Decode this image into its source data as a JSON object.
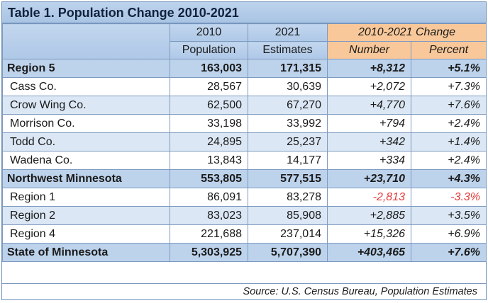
{
  "title": "Table 1. Population Change 2010-2021",
  "headers": {
    "col1_line1": "2010",
    "col1_line2": "Population",
    "col2_line1": "2021",
    "col2_line2": "Estimates",
    "change_group": "2010-2021 Change",
    "change_number": "Number",
    "change_percent": "Percent"
  },
  "rows": [
    {
      "name": "Region 5",
      "pop2010": "163,003",
      "est2021": "171,315",
      "number": "+8,312",
      "percent": "+5.1%"
    },
    {
      "name": "Cass Co.",
      "pop2010": "28,567",
      "est2021": "30,639",
      "number": "+2,072",
      "percent": "+7.3%"
    },
    {
      "name": "Crow Wing Co.",
      "pop2010": "62,500",
      "est2021": "67,270",
      "number": "+4,770",
      "percent": "+7.6%"
    },
    {
      "name": "Morrison Co.",
      "pop2010": "33,198",
      "est2021": "33,992",
      "number": "+794",
      "percent": "+2.4%"
    },
    {
      "name": "Todd Co.",
      "pop2010": "24,895",
      "est2021": "25,237",
      "number": "+342",
      "percent": "+1.4%"
    },
    {
      "name": "Wadena Co.",
      "pop2010": "13,843",
      "est2021": "14,177",
      "number": "+334",
      "percent": "+2.4%"
    },
    {
      "name": "Northwest Minnesota",
      "pop2010": "553,805",
      "est2021": "577,515",
      "number": "+23,710",
      "percent": "+4.3%"
    },
    {
      "name": "Region 1",
      "pop2010": "86,091",
      "est2021": "83,278",
      "number": "-2,813",
      "percent": "-3.3%"
    },
    {
      "name": "Region 2",
      "pop2010": "83,023",
      "est2021": "85,908",
      "number": "+2,885",
      "percent": "+3.5%"
    },
    {
      "name": "Region 4",
      "pop2010": "221,688",
      "est2021": "237,014",
      "number": "+15,326",
      "percent": "+6.9%"
    },
    {
      "name": "State of Minnesota",
      "pop2010": "5,303,925",
      "est2021": "5,707,390",
      "number": "+403,465",
      "percent": "+7.6%"
    }
  ],
  "source": "Source: U.S. Census Bureau, Population Estimates",
  "colors": {
    "header_blue": "#bdd3ec",
    "change_orange": "#f8c89a",
    "row_alt_blue": "#dbe7f4",
    "negative_red": "#e43a3a"
  }
}
